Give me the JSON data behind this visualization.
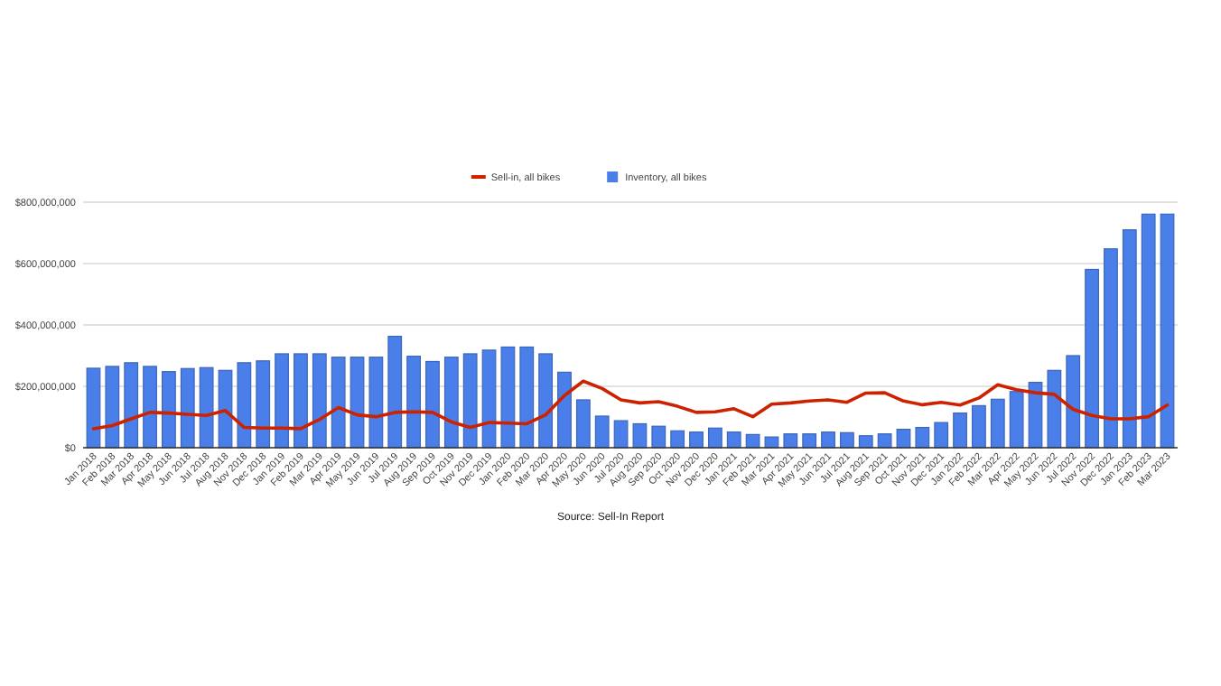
{
  "chart_data": {
    "type": "bar",
    "categories": [
      "Jan 2018",
      "Feb 2018",
      "Mar 2018",
      "Apr 2018",
      "May 2018",
      "Jun 2018",
      "Jul 2018",
      "Aug 2018",
      "Nov 2018",
      "Dec 2018",
      "Jan 2019",
      "Feb 2019",
      "Mar 2019",
      "Apr 2019",
      "May 2019",
      "Jun 2019",
      "Jul 2019",
      "Aug 2019",
      "Sep 2019",
      "Oct 2019",
      "Nov 2019",
      "Dec 2019",
      "Jan 2020",
      "Feb 2020",
      "Mar 2020",
      "Apr 2020",
      "May 2020",
      "Jun 2020",
      "Jul 2020",
      "Aug 2020",
      "Sep 2020",
      "Oct 2020",
      "Nov 2020",
      "Dec 2020",
      "Jan 2021",
      "Feb 2021",
      "Mar 2021",
      "Apr 2021",
      "May 2021",
      "Jun 2021",
      "Jul 2021",
      "Aug 2021",
      "Sep 2021",
      "Oct 2021",
      "Nov 2021",
      "Dec 2021",
      "Jan 2022",
      "Feb 2022",
      "Mar 2022",
      "Apr 2022",
      "May 2022",
      "Jun 2022",
      "Jul 2022",
      "Nov 2022",
      "Dec 2022",
      "Jan 2023",
      "Feb 2023",
      "Mar 2023"
    ],
    "series": [
      {
        "name": "Sell-in, all bikes",
        "type": "line",
        "color": "#cc2200",
        "values": [
          62000000,
          72000000,
          94000000,
          115000000,
          113000000,
          109000000,
          105000000,
          121000000,
          66000000,
          64000000,
          64000000,
          62000000,
          92000000,
          131000000,
          107000000,
          101000000,
          115000000,
          117000000,
          115000000,
          84000000,
          66000000,
          82000000,
          80000000,
          78000000,
          107000000,
          170000000,
          217000000,
          193000000,
          156000000,
          146000000,
          150000000,
          135000000,
          115000000,
          117000000,
          127000000,
          101000000,
          142000000,
          146000000,
          152000000,
          156000000,
          148000000,
          178000000,
          179000000,
          152000000,
          140000000,
          148000000,
          139000000,
          162000000,
          205000000,
          189000000,
          179000000,
          174000000,
          125000000,
          105000000,
          94000000,
          94000000,
          101000000,
          139000000
        ]
      },
      {
        "name": "Inventory, all bikes",
        "color": "#4a7ee8",
        "values": [
          259000000,
          265000000,
          277000000,
          265000000,
          248000000,
          258000000,
          261000000,
          252000000,
          277000000,
          283000000,
          306000000,
          306000000,
          306000000,
          295000000,
          295000000,
          295000000,
          363000000,
          298000000,
          281000000,
          295000000,
          306000000,
          318000000,
          328000000,
          328000000,
          306000000,
          246000000,
          156000000,
          103000000,
          88000000,
          78000000,
          70000000,
          55000000,
          51000000,
          64000000,
          51000000,
          43000000,
          35000000,
          45000000,
          45000000,
          51000000,
          49000000,
          39000000,
          45000000,
          60000000,
          66000000,
          82000000,
          113000000,
          137000000,
          158000000,
          183000000,
          213000000,
          252000000,
          300000000,
          581000000,
          648000000,
          710000000,
          761000000,
          761000000
        ]
      }
    ],
    "ylim": [
      0,
      800000000
    ],
    "yticks": [
      {
        "value": 0,
        "label": "$0"
      },
      {
        "value": 200000000,
        "label": "$200,000,000"
      },
      {
        "value": 400000000,
        "label": "$400,000,000"
      },
      {
        "value": 600000000,
        "label": "$600,000,000"
      },
      {
        "value": 800000000,
        "label": "$800,000,000"
      }
    ],
    "grid": "y",
    "legend": "top",
    "marker": "none",
    "annotations": [
      "Source: Sell-In Report"
    ]
  }
}
